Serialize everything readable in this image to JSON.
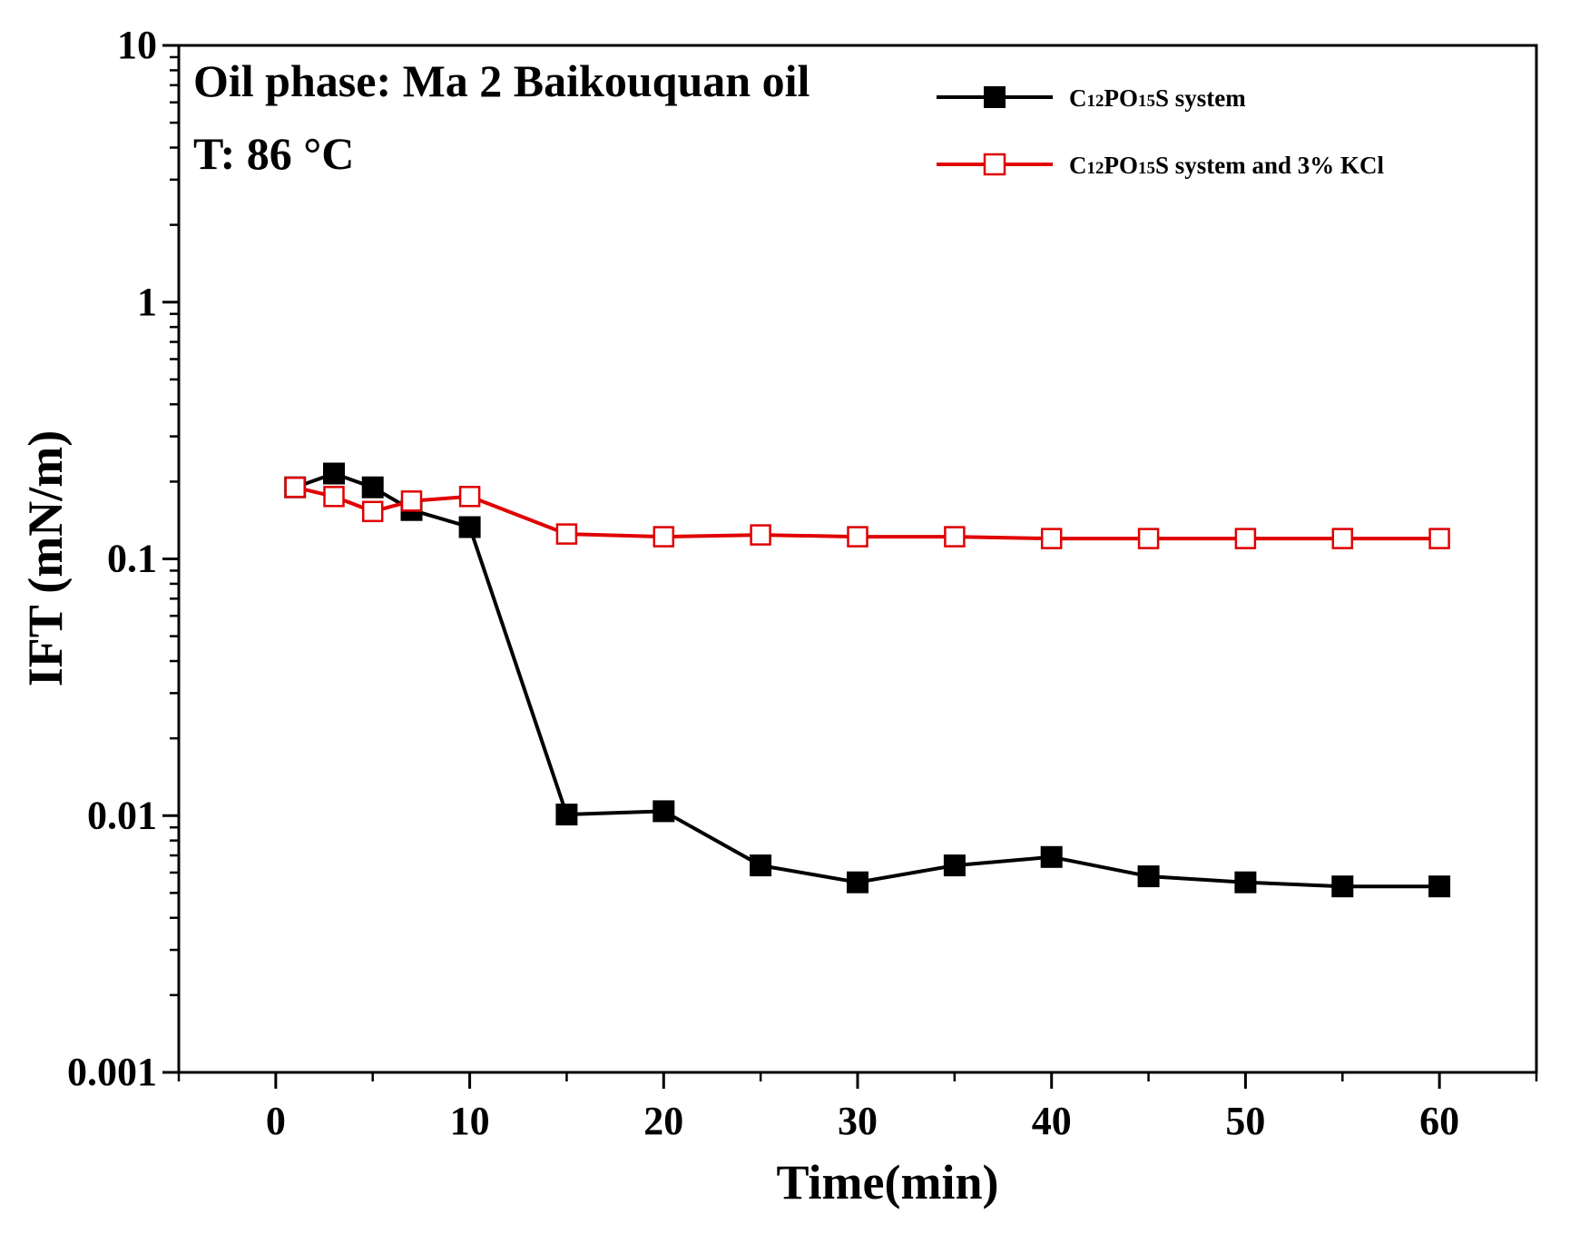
{
  "chart_data": {
    "type": "line",
    "yscale": "log",
    "xlabel": "Time(min)",
    "ylabel": "IFT (mN/m)",
    "xlim": [
      -5,
      65
    ],
    "ylim": [
      0.001,
      10
    ],
    "xticks": [
      "0",
      "10",
      "20",
      "30",
      "40",
      "50",
      "60"
    ],
    "yticks": [
      "0.001",
      "0.01",
      "0.1",
      "1",
      "10"
    ],
    "annotations": [
      "Oil phase: Ma 2 Baikouquan oil",
      "T: 86 °C"
    ],
    "legend_position": "top-right",
    "series": [
      {
        "name": "C12PO15S system",
        "legend": {
          "base": "C",
          "sub1": "12",
          "mid": "PO",
          "sub2": "15",
          "rest": "S system"
        },
        "color": "#000000",
        "marker": "filled-square",
        "x": [
          1,
          3,
          5,
          7,
          10,
          15,
          20,
          25,
          30,
          35,
          40,
          45,
          50,
          55,
          60
        ],
        "values": [
          0.19,
          0.215,
          0.19,
          0.155,
          0.133,
          0.0101,
          0.0104,
          0.0064,
          0.0055,
          0.0064,
          0.0069,
          0.0058,
          0.0055,
          0.0053,
          0.0053
        ]
      },
      {
        "name": "C12PO15S system and 3% KCl",
        "legend": {
          "base": "C",
          "sub1": "12",
          "mid": "PO",
          "sub2": "15",
          "rest": "S system and 3% KCl"
        },
        "color": "#e00000",
        "marker": "open-square",
        "x": [
          1,
          3,
          5,
          7,
          10,
          15,
          20,
          25,
          30,
          35,
          40,
          45,
          50,
          55,
          60
        ],
        "values": [
          0.19,
          0.175,
          0.153,
          0.168,
          0.175,
          0.125,
          0.122,
          0.124,
          0.122,
          0.122,
          0.12,
          0.12,
          0.12,
          0.12,
          0.12
        ]
      }
    ]
  }
}
